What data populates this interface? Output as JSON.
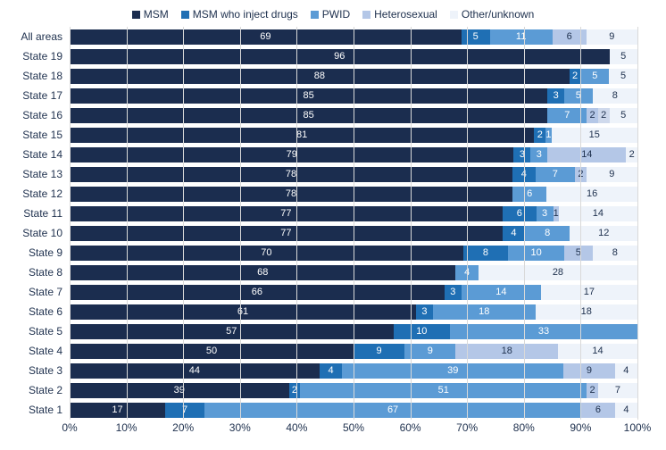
{
  "chart": {
    "type": "stacked-bar-horizontal",
    "background_color": "#ffffff",
    "grid_color": "#d9d9d9",
    "label_color": "#20324f",
    "label_fontsize": 12,
    "value_fontsize": 11,
    "xlim": [
      0,
      100
    ],
    "xtick_step": 10,
    "xtick_suffix": "%",
    "series": [
      {
        "key": "msm",
        "label": "MSM",
        "color": "#1b2d4f",
        "text_color": "#ffffff"
      },
      {
        "key": "msmidu",
        "label": "MSM who inject drugs",
        "color": "#1f6fb4",
        "text_color": "#ffffff"
      },
      {
        "key": "pwid",
        "label": "PWID",
        "color": "#5b9bd5",
        "text_color": "#ffffff"
      },
      {
        "key": "het",
        "label": "Heterosexual",
        "color": "#b4c7e7",
        "text_color": "#20324f"
      },
      {
        "key": "other",
        "label": "Other/unknown",
        "color": "#eef3fa",
        "text_color": "#20324f"
      }
    ],
    "rows": [
      {
        "label": "All areas",
        "values": {
          "msm": 69,
          "msmidu": 5,
          "pwid": 11,
          "het": 6,
          "other": 9
        },
        "show": {
          "msm": true,
          "msmidu": true,
          "pwid": true,
          "het": true,
          "other": true
        }
      },
      {
        "label": "State 19",
        "values": {
          "msm": 96,
          "msmidu": 0,
          "pwid": 0,
          "het": 0,
          "other": 5
        },
        "show": {
          "msm": true,
          "msmidu": false,
          "pwid": false,
          "het": false,
          "other": true
        }
      },
      {
        "label": "State 18",
        "values": {
          "msm": 88,
          "msmidu": 2,
          "pwid": 5,
          "het": 0,
          "other": 5
        },
        "show": {
          "msm": true,
          "msmidu": true,
          "pwid": true,
          "het": false,
          "other": true
        }
      },
      {
        "label": "State 17",
        "values": {
          "msm": 85,
          "msmidu": 3,
          "pwid": 5,
          "het": 0,
          "other": 8
        },
        "show": {
          "msm": true,
          "msmidu": true,
          "pwid": true,
          "het": false,
          "other": true
        }
      },
      {
        "label": "State 16",
        "values": {
          "msm": 85,
          "msmidu": 0,
          "pwid": 7,
          "het": 2,
          "other": 5
        },
        "show": {
          "msm": true,
          "msmidu": false,
          "pwid": true,
          "het": true,
          "other": true
        },
        "extra_after_het": 2
      },
      {
        "label": "State 15",
        "values": {
          "msm": 81,
          "msmidu": 2,
          "pwid": 1,
          "het": 0,
          "other": 15
        },
        "show": {
          "msm": true,
          "msmidu": true,
          "pwid": true,
          "het": false,
          "other": true
        }
      },
      {
        "label": "State 14",
        "values": {
          "msm": 79,
          "msmidu": 3,
          "pwid": 3,
          "het": 14,
          "other": 2
        },
        "show": {
          "msm": true,
          "msmidu": true,
          "pwid": true,
          "het": true,
          "other": true
        }
      },
      {
        "label": "State 13",
        "values": {
          "msm": 78,
          "msmidu": 4,
          "pwid": 7,
          "het": 2,
          "other": 9
        },
        "show": {
          "msm": true,
          "msmidu": true,
          "pwid": true,
          "het": true,
          "other": true
        }
      },
      {
        "label": "State 12",
        "values": {
          "msm": 78,
          "msmidu": 0,
          "pwid": 6,
          "het": 0,
          "other": 16
        },
        "show": {
          "msm": true,
          "msmidu": false,
          "pwid": true,
          "het": false,
          "other": true
        }
      },
      {
        "label": "State 11",
        "values": {
          "msm": 77,
          "msmidu": 6,
          "pwid": 3,
          "het": 1,
          "other": 14
        },
        "show": {
          "msm": true,
          "msmidu": true,
          "pwid": true,
          "het": true,
          "other": true
        }
      },
      {
        "label": "State 10",
        "values": {
          "msm": 77,
          "msmidu": 4,
          "pwid": 8,
          "het": 0,
          "other": 12
        },
        "show": {
          "msm": true,
          "msmidu": true,
          "pwid": true,
          "het": false,
          "other": true
        }
      },
      {
        "label": "State 9",
        "values": {
          "msm": 70,
          "msmidu": 8,
          "pwid": 10,
          "het": 5,
          "other": 8
        },
        "show": {
          "msm": true,
          "msmidu": true,
          "pwid": true,
          "het": true,
          "other": true
        }
      },
      {
        "label": "State 8",
        "values": {
          "msm": 68,
          "msmidu": 0,
          "pwid": 4,
          "het": 0,
          "other": 28
        },
        "show": {
          "msm": true,
          "msmidu": false,
          "pwid": true,
          "het": false,
          "other": true
        }
      },
      {
        "label": "State 7",
        "values": {
          "msm": 66,
          "msmidu": 3,
          "pwid": 14,
          "het": 0,
          "other": 17
        },
        "show": {
          "msm": true,
          "msmidu": true,
          "pwid": true,
          "het": false,
          "other": true
        }
      },
      {
        "label": "State 6",
        "values": {
          "msm": 61,
          "msmidu": 3,
          "pwid": 18,
          "het": 0,
          "other": 18
        },
        "show": {
          "msm": true,
          "msmidu": true,
          "pwid": true,
          "het": false,
          "other": true
        }
      },
      {
        "label": "State 5",
        "values": {
          "msm": 57,
          "msmidu": 10,
          "pwid": 33,
          "het": 0,
          "other": 0
        },
        "show": {
          "msm": true,
          "msmidu": true,
          "pwid": true,
          "het": false,
          "other": false
        }
      },
      {
        "label": "State 4",
        "values": {
          "msm": 50,
          "msmidu": 9,
          "pwid": 9,
          "het": 18,
          "other": 14
        },
        "show": {
          "msm": true,
          "msmidu": true,
          "pwid": true,
          "het": true,
          "other": true
        }
      },
      {
        "label": "State 3",
        "values": {
          "msm": 44,
          "msmidu": 4,
          "pwid": 39,
          "het": 9,
          "other": 4
        },
        "show": {
          "msm": true,
          "msmidu": true,
          "pwid": true,
          "het": true,
          "other": true
        }
      },
      {
        "label": "State 2",
        "values": {
          "msm": 39,
          "msmidu": 2,
          "pwid": 51,
          "het": 2,
          "other": 7
        },
        "show": {
          "msm": true,
          "msmidu": true,
          "pwid": true,
          "het": true,
          "other": true
        }
      },
      {
        "label": "State 1",
        "values": {
          "msm": 17,
          "msmidu": 7,
          "pwid": 67,
          "het": 6,
          "other": 4
        },
        "show": {
          "msm": true,
          "msmidu": true,
          "pwid": true,
          "het": true,
          "other": true
        }
      }
    ]
  }
}
